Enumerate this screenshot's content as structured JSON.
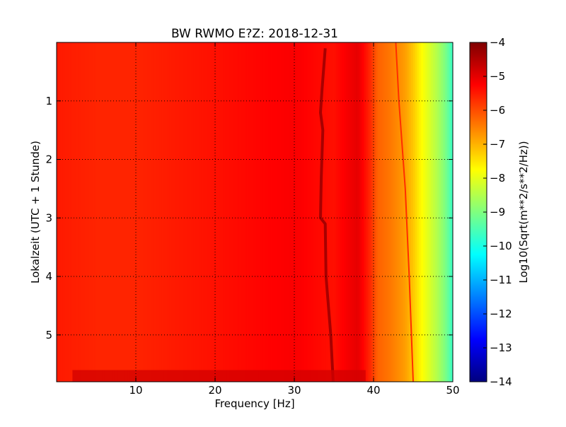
{
  "chart_data": {
    "type": "heatmap",
    "title": "BW RWMO E?Z: 2018-12-31",
    "xlabel": "Frequency [Hz]",
    "ylabel": "Lokalzeit (UTC + 1 Stunde)",
    "xlim": [
      0,
      50
    ],
    "ylim": [
      0,
      5.8
    ],
    "y_inverted": true,
    "x_ticks": [
      "10",
      "20",
      "30",
      "40",
      "50"
    ],
    "x_tick_values": [
      10,
      20,
      30,
      40,
      50
    ],
    "y_ticks": [
      "1",
      "2",
      "3",
      "4",
      "5"
    ],
    "y_tick_values": [
      1,
      2,
      3,
      4,
      5
    ],
    "grid": true,
    "colormap": "jet",
    "colorbar": {
      "label": "Log10(Sqrt(m**2/s**2/Hz))",
      "range": [
        -14,
        -4
      ],
      "ticks": [
        "−4",
        "−5",
        "−6",
        "−7",
        "−8",
        "−9",
        "−10",
        "−11",
        "−12",
        "−13",
        "−14"
      ],
      "tick_values": [
        -4,
        -5,
        -6,
        -7,
        -8,
        -9,
        -10,
        -11,
        -12,
        -13,
        -14
      ]
    },
    "frequency_profile": {
      "frequency_hz": [
        0,
        5,
        10,
        15,
        20,
        25,
        30,
        35,
        38,
        39.5,
        40.5,
        42,
        43,
        44,
        45,
        46,
        47,
        48,
        49,
        50
      ],
      "log10_amplitude": [
        -5.5,
        -5.6,
        -5.6,
        -5.5,
        -5.4,
        -5.3,
        -5.2,
        -5.4,
        -5.0,
        -5.6,
        -6.2,
        -6.4,
        -6.6,
        -6.8,
        -7.2,
        -7.7,
        -8.1,
        -8.5,
        -9.0,
        -9.7
      ]
    },
    "features": [
      {
        "type": "drifting_line",
        "value": -4.4,
        "points": [
          [
            33.9,
            0.1
          ],
          [
            33.5,
            0.8
          ],
          [
            33.3,
            1.2
          ],
          [
            33.6,
            1.5
          ],
          [
            33.4,
            2.3
          ],
          [
            33.3,
            3.0
          ],
          [
            33.9,
            3.1
          ],
          [
            34.0,
            4.0
          ],
          [
            34.6,
            5.0
          ],
          [
            34.9,
            5.8
          ]
        ]
      },
      {
        "type": "drifting_line",
        "value": -5.7,
        "points": [
          [
            42.8,
            0.0
          ],
          [
            43.2,
            1.0
          ],
          [
            44.0,
            2.5
          ],
          [
            44.5,
            4.0
          ],
          [
            45.0,
            5.8
          ]
        ]
      },
      {
        "type": "time_band",
        "value": -4.8,
        "t0": 5.6,
        "t1": 5.8,
        "f0": 2,
        "f1": 39
      }
    ]
  }
}
